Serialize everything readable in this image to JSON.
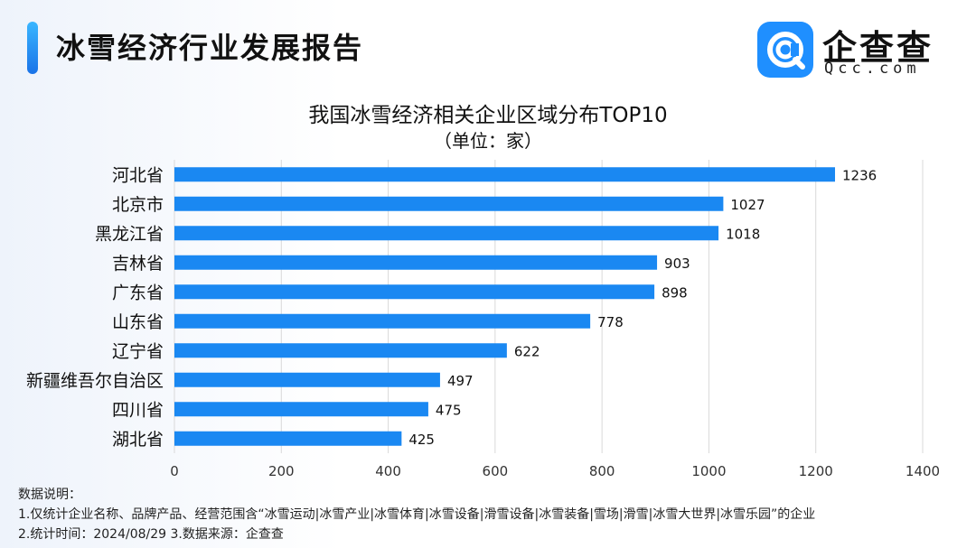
{
  "header": {
    "title": "冰雪经济行业发展报告"
  },
  "logo": {
    "cn": "企查查",
    "en": "Qcc.com",
    "icon": "qcc-magnifier-icon"
  },
  "colors": {
    "bar": "#1a88f2",
    "accent": "#1f8fff",
    "grid": "#d9d9d9"
  },
  "chart_data": {
    "type": "bar",
    "orientation": "horizontal",
    "title": "我国冰雪经济相关企业区域分布TOP10",
    "subtitle": "（单位：家）",
    "categories": [
      "河北省",
      "北京市",
      "黑龙江省",
      "吉林省",
      "广东省",
      "山东省",
      "辽宁省",
      "新疆维吾尔自治区",
      "四川省",
      "湖北省"
    ],
    "values": [
      1236,
      1027,
      1018,
      903,
      898,
      778,
      622,
      497,
      475,
      425
    ],
    "xlim": [
      0,
      1400
    ],
    "xticks": [
      0,
      200,
      400,
      600,
      800,
      1000,
      1200,
      1400
    ],
    "grid": true,
    "data_labels": true
  },
  "notes": {
    "heading": "数据说明：",
    "line1": "1.仅统计企业名称、品牌产品、经营范围含“冰雪运动|冰雪产业|冰雪体育|冰雪设备|滑雪设备|冰雪装备|雪场|滑雪|冰雪大世界|冰雪乐园”的企业",
    "line2": "2.统计时间：2024/08/29    3.数据来源：企查查"
  }
}
